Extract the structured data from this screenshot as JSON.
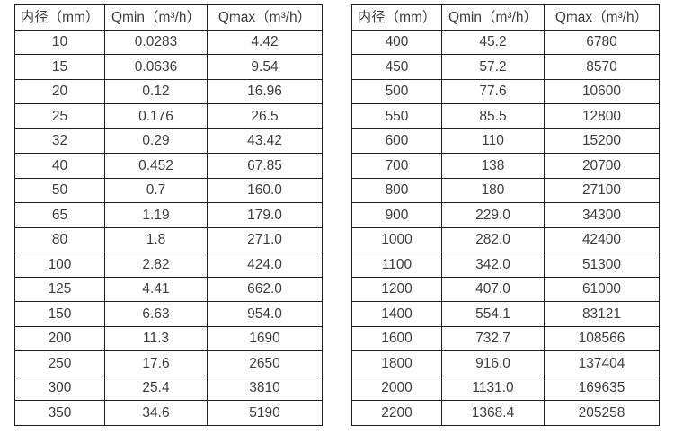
{
  "page": {
    "background": "#ffffff",
    "text_color": "#3d3d3d",
    "border_color": "#1f1f1f"
  },
  "left_table": {
    "headers": [
      "内径（mm）",
      "Qmin（m³/h）",
      "Qmax（m³/h）"
    ],
    "rows": [
      [
        "10",
        "0.0283",
        "4.42"
      ],
      [
        "15",
        "0.0636",
        "9.54"
      ],
      [
        "20",
        "0.12",
        "16.96"
      ],
      [
        "25",
        "0.176",
        "26.5"
      ],
      [
        "32",
        "0.29",
        "43.42"
      ],
      [
        "40",
        "0.452",
        "67.85"
      ],
      [
        "50",
        "0.7",
        "160.0"
      ],
      [
        "65",
        "1.19",
        "179.0"
      ],
      [
        "80",
        "1.8",
        "271.0"
      ],
      [
        "100",
        "2.82",
        "424.0"
      ],
      [
        "125",
        "4.41",
        "662.0"
      ],
      [
        "150",
        "6.63",
        "954.0"
      ],
      [
        "200",
        "11.3",
        "1690"
      ],
      [
        "250",
        "17.6",
        "2650"
      ],
      [
        "300",
        "25.4",
        "3810"
      ],
      [
        "350",
        "34.6",
        "5190"
      ]
    ]
  },
  "right_table": {
    "headers": [
      "内径（mm）",
      "Qmin（m³/h）",
      "Qmax（m³/h）"
    ],
    "rows": [
      [
        "400",
        "45.2",
        "6780"
      ],
      [
        "450",
        "57.2",
        "8570"
      ],
      [
        "500",
        "77.6",
        "10600"
      ],
      [
        "550",
        "85.5",
        "12800"
      ],
      [
        "600",
        "110",
        "15200"
      ],
      [
        "700",
        "138",
        "20700"
      ],
      [
        "800",
        "180",
        "27100"
      ],
      [
        "900",
        "229.0",
        "34300"
      ],
      [
        "1000",
        "282.0",
        "42400"
      ],
      [
        "1100",
        "342.0",
        "51300"
      ],
      [
        "1200",
        "407.0",
        "61000"
      ],
      [
        "1400",
        "554.1",
        "83121"
      ],
      [
        "1600",
        "732.7",
        "108566"
      ],
      [
        "1800",
        "916.0",
        "137404"
      ],
      [
        "2000",
        "1131.0",
        "169635"
      ],
      [
        "2200",
        "1368.4",
        "205258"
      ]
    ]
  },
  "chart_data": {
    "type": "table",
    "title": "",
    "tables": [
      {
        "columns": [
          "内径（mm）",
          "Qmin（m³/h）",
          "Qmax（m³/h）"
        ],
        "inner_diameter_mm": [
          10,
          15,
          20,
          25,
          32,
          40,
          50,
          65,
          80,
          100,
          125,
          150,
          200,
          250,
          300,
          350
        ],
        "qmin_m3h": [
          0.0283,
          0.0636,
          0.12,
          0.176,
          0.29,
          0.452,
          0.7,
          1.19,
          1.8,
          2.82,
          4.41,
          6.63,
          11.3,
          17.6,
          25.4,
          34.6
        ],
        "qmax_m3h": [
          4.42,
          9.54,
          16.96,
          26.5,
          43.42,
          67.85,
          160.0,
          179.0,
          271.0,
          424.0,
          662.0,
          954.0,
          1690,
          2650,
          3810,
          5190
        ]
      },
      {
        "columns": [
          "内径（mm）",
          "Qmin（m³/h）",
          "Qmax（m³/h）"
        ],
        "inner_diameter_mm": [
          400,
          450,
          500,
          550,
          600,
          700,
          800,
          900,
          1000,
          1100,
          1200,
          1400,
          1600,
          1800,
          2000,
          2200
        ],
        "qmin_m3h": [
          45.2,
          57.2,
          77.6,
          85.5,
          110,
          138,
          180,
          229.0,
          282.0,
          342.0,
          407.0,
          554.1,
          732.7,
          916.0,
          1131.0,
          1368.4
        ],
        "qmax_m3h": [
          6780,
          8570,
          10600,
          12800,
          15200,
          20700,
          27100,
          34300,
          42400,
          51300,
          61000,
          83121,
          108566,
          137404,
          169635,
          205258
        ]
      }
    ]
  }
}
